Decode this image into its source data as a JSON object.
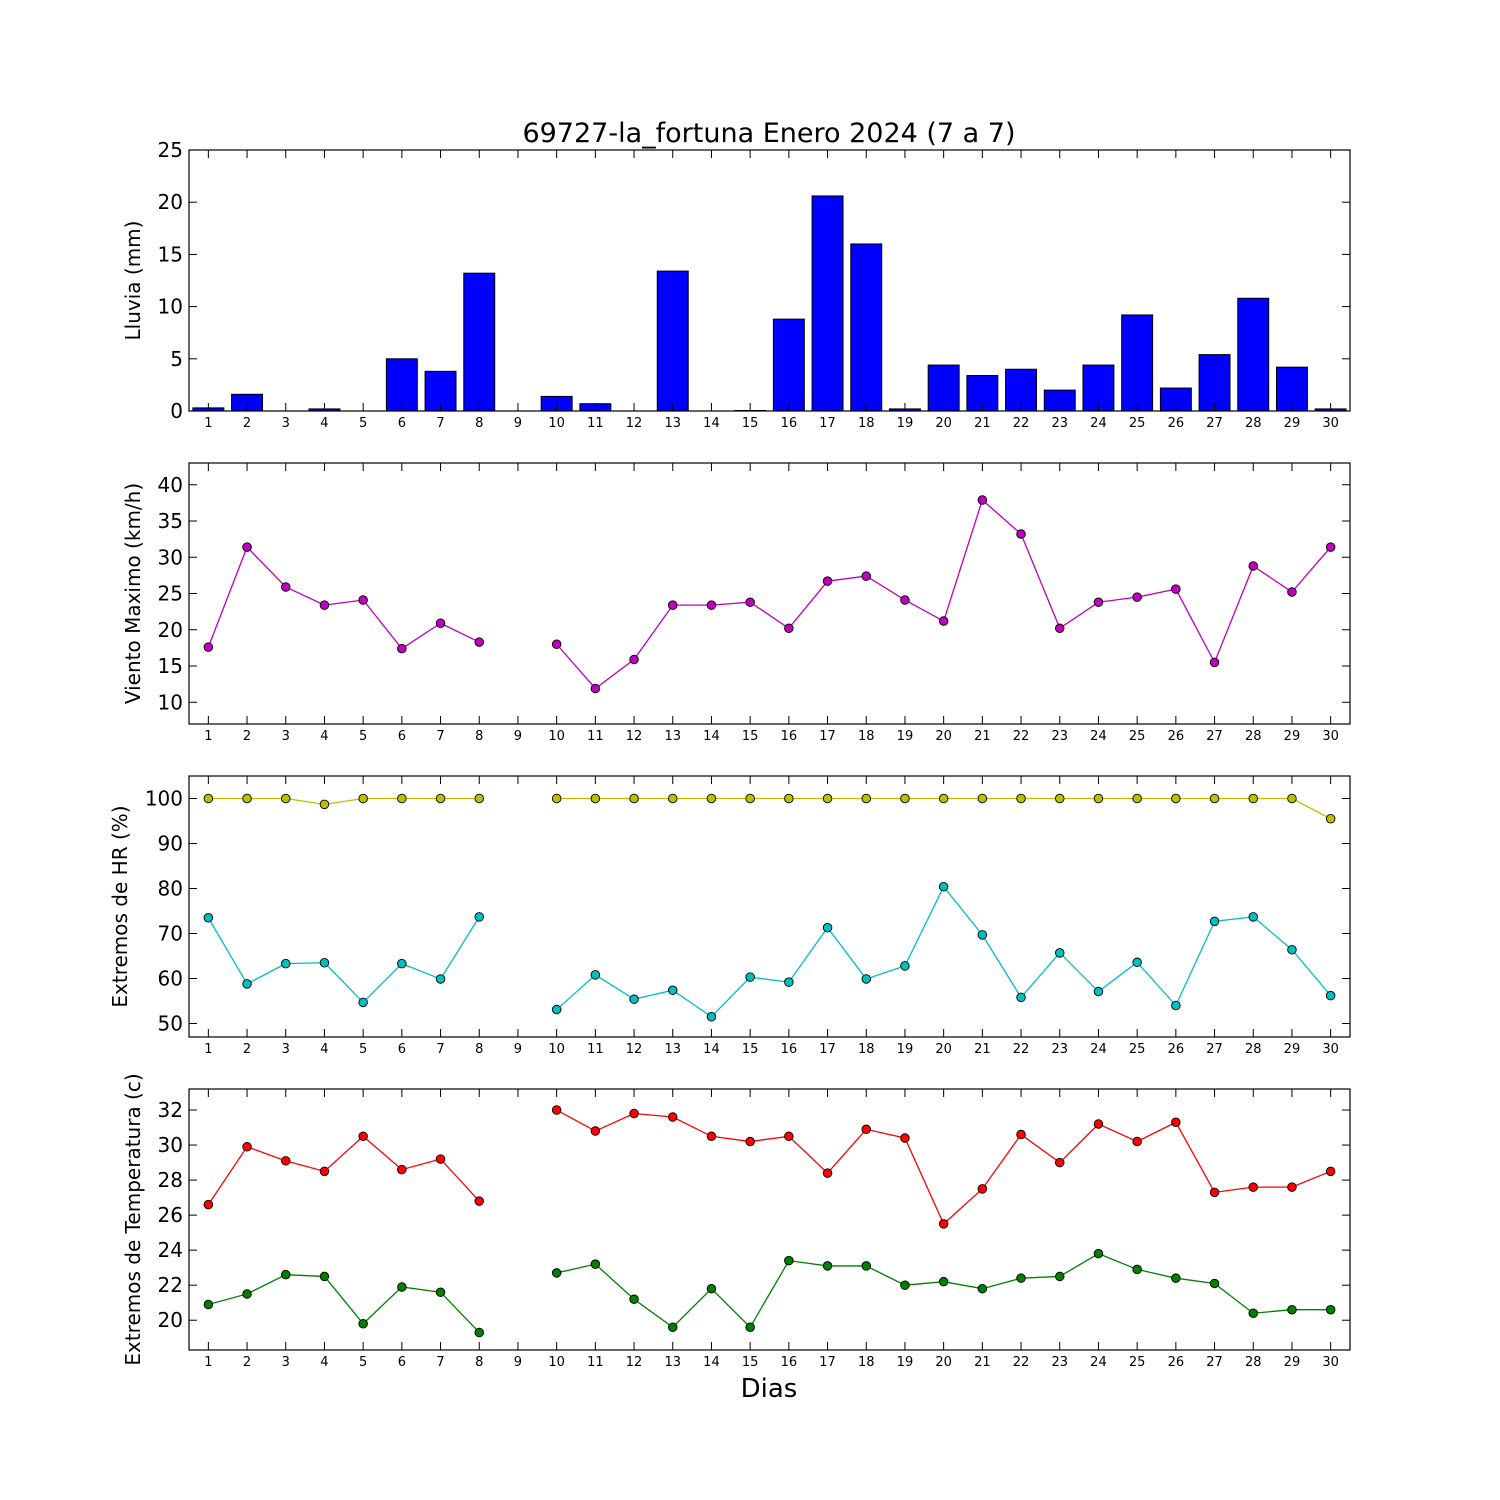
{
  "figure": {
    "title": "69727-la_fortuna Enero 2024  (7 a 7)",
    "xlabel": "Dias"
  },
  "chart_data": [
    {
      "type": "bar",
      "ylabel": "Lluvia (mm)",
      "ylim": [
        0,
        25
      ],
      "yticks": [
        0,
        5,
        10,
        15,
        20,
        25
      ],
      "categories": [
        1,
        2,
        3,
        4,
        5,
        6,
        7,
        8,
        9,
        10,
        11,
        12,
        13,
        14,
        15,
        16,
        17,
        18,
        19,
        20,
        21,
        22,
        23,
        24,
        25,
        26,
        27,
        28,
        29,
        30
      ],
      "grid": false,
      "series": [
        {
          "color": "#0000ff",
          "values": [
            0.3,
            1.6,
            0,
            0.2,
            0,
            5.0,
            3.8,
            13.2,
            0,
            1.4,
            0.7,
            0,
            13.4,
            0,
            0.05,
            8.8,
            20.6,
            16.0,
            0.2,
            4.4,
            3.4,
            4.0,
            2.0,
            4.4,
            9.2,
            2.2,
            5.4,
            10.8,
            4.2,
            0.2
          ]
        }
      ]
    },
    {
      "type": "line",
      "ylabel": "Viento Maximo (km/h)",
      "ylim": [
        7,
        43
      ],
      "yticks": [
        10,
        15,
        20,
        25,
        30,
        35,
        40
      ],
      "x": [
        1,
        2,
        3,
        4,
        5,
        6,
        7,
        8,
        9,
        10,
        11,
        12,
        13,
        14,
        15,
        16,
        17,
        18,
        19,
        20,
        21,
        22,
        23,
        24,
        25,
        26,
        27,
        28,
        29,
        30
      ],
      "grid": false,
      "series": [
        {
          "color": "#bf00bf",
          "values": [
            17.6,
            31.4,
            25.9,
            23.4,
            24.1,
            17.4,
            20.9,
            18.3,
            null,
            18.0,
            11.9,
            15.9,
            23.4,
            23.4,
            23.8,
            20.2,
            26.7,
            27.4,
            24.1,
            21.2,
            37.9,
            33.2,
            20.2,
            23.8,
            24.5,
            25.6,
            15.5,
            28.8,
            25.2,
            31.4
          ]
        }
      ]
    },
    {
      "type": "line",
      "ylabel": "Extremos de HR (%)",
      "ylim": [
        47,
        105
      ],
      "yticks": [
        50,
        60,
        70,
        80,
        90,
        100
      ],
      "x": [
        1,
        2,
        3,
        4,
        5,
        6,
        7,
        8,
        9,
        10,
        11,
        12,
        13,
        14,
        15,
        16,
        17,
        18,
        19,
        20,
        21,
        22,
        23,
        24,
        25,
        26,
        27,
        28,
        29,
        30
      ],
      "grid": false,
      "series": [
        {
          "color": "#bfbf00",
          "values": [
            100,
            100,
            100,
            98.7,
            100,
            100,
            100,
            100,
            null,
            100,
            100,
            100,
            100,
            100,
            100,
            100,
            100,
            100,
            100,
            100,
            100,
            100,
            100,
            100,
            100,
            100,
            100,
            100,
            100,
            95.5
          ]
        },
        {
          "color": "#00bfbf",
          "values": [
            73.5,
            58.8,
            63.3,
            63.5,
            54.7,
            63.3,
            59.9,
            73.7,
            null,
            53.1,
            60.8,
            55.4,
            57.4,
            51.5,
            60.3,
            59.2,
            71.3,
            59.9,
            62.8,
            80.4,
            69.7,
            55.8,
            65.7,
            57.1,
            63.6,
            54.0,
            72.7,
            73.7,
            66.4,
            56.2
          ]
        }
      ]
    },
    {
      "type": "line",
      "ylabel": "Extremos de Temperatura (c)",
      "ylim": [
        18.3,
        33.2
      ],
      "yticks": [
        20,
        22,
        24,
        26,
        28,
        30,
        32
      ],
      "x": [
        1,
        2,
        3,
        4,
        5,
        6,
        7,
        8,
        9,
        10,
        11,
        12,
        13,
        14,
        15,
        16,
        17,
        18,
        19,
        20,
        21,
        22,
        23,
        24,
        25,
        26,
        27,
        28,
        29,
        30
      ],
      "grid": false,
      "series": [
        {
          "color": "#ff0000",
          "values": [
            26.6,
            29.9,
            29.1,
            28.5,
            30.5,
            28.6,
            29.2,
            26.8,
            null,
            32.0,
            30.8,
            31.8,
            31.6,
            30.5,
            30.2,
            30.5,
            28.4,
            30.9,
            30.4,
            25.5,
            27.5,
            30.6,
            29.0,
            31.2,
            30.2,
            31.3,
            27.3,
            27.6,
            27.6,
            28.5
          ]
        },
        {
          "color": "#008000",
          "values": [
            20.9,
            21.5,
            22.6,
            22.5,
            19.8,
            21.9,
            21.6,
            19.3,
            null,
            22.7,
            23.2,
            21.2,
            19.6,
            21.8,
            19.6,
            23.4,
            23.1,
            23.1,
            22.0,
            22.2,
            21.8,
            22.4,
            22.5,
            23.8,
            22.9,
            22.4,
            22.1,
            20.4,
            20.6,
            20.6
          ]
        }
      ]
    }
  ]
}
